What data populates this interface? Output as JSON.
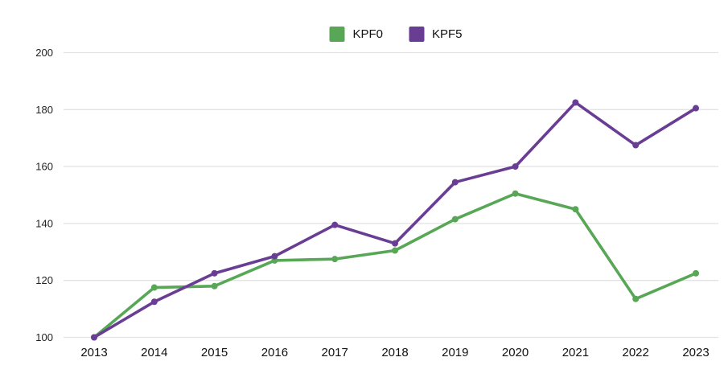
{
  "chart_data": {
    "type": "line",
    "x": [
      2013,
      2014,
      2015,
      2016,
      2017,
      2018,
      2019,
      2020,
      2021,
      2022,
      2023
    ],
    "series": [
      {
        "name": "KPF0",
        "color": "#57a757",
        "values": [
          100,
          117.5,
          118,
          127,
          127.5,
          130.5,
          141.5,
          150.5,
          145,
          113.5,
          122.5
        ]
      },
      {
        "name": "KPF5",
        "color": "#6a3d94",
        "values": [
          100,
          112.5,
          122.5,
          128.5,
          139.5,
          133,
          154.5,
          160,
          182.5,
          167.5,
          180.5
        ]
      }
    ],
    "ylim": [
      100,
      200
    ],
    "yticks": [
      100,
      120,
      140,
      160,
      180,
      200
    ],
    "grid": "horizontal",
    "gridline_color": "#e2e2e2",
    "marker": "circle",
    "legend_position": "top-center"
  }
}
